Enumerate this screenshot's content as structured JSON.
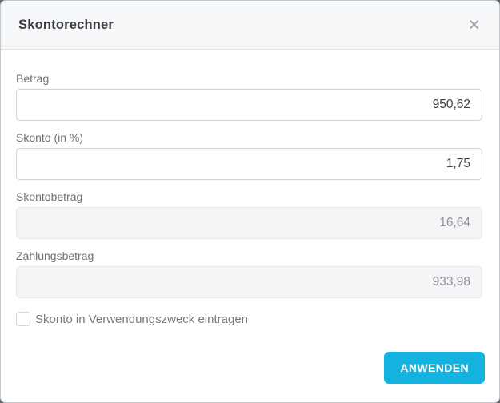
{
  "dialog": {
    "title": "Skontorechner",
    "close_icon": "×"
  },
  "fields": [
    {
      "label": "Betrag",
      "value": "950,62",
      "disabled": false
    },
    {
      "label": "Skonto (in %)",
      "value": "1,75",
      "disabled": false
    },
    {
      "label": "Skontobetrag",
      "value": "16,64",
      "disabled": true
    },
    {
      "label": "Zahlungsbetrag",
      "value": "933,98",
      "disabled": true
    }
  ],
  "checkbox": {
    "label": "Skonto in Verwendungszweck eintragen",
    "checked": false
  },
  "footer": {
    "apply_label": "ANWENDEN"
  },
  "colors": {
    "accent": "#14b2de",
    "header_bg": "#f7f8fa",
    "divider": "#e0e2e5",
    "label_text": "#6d7075",
    "input_border": "#cfd1d4",
    "disabled_bg": "#f5f5f7",
    "backdrop": "#5f6468"
  }
}
